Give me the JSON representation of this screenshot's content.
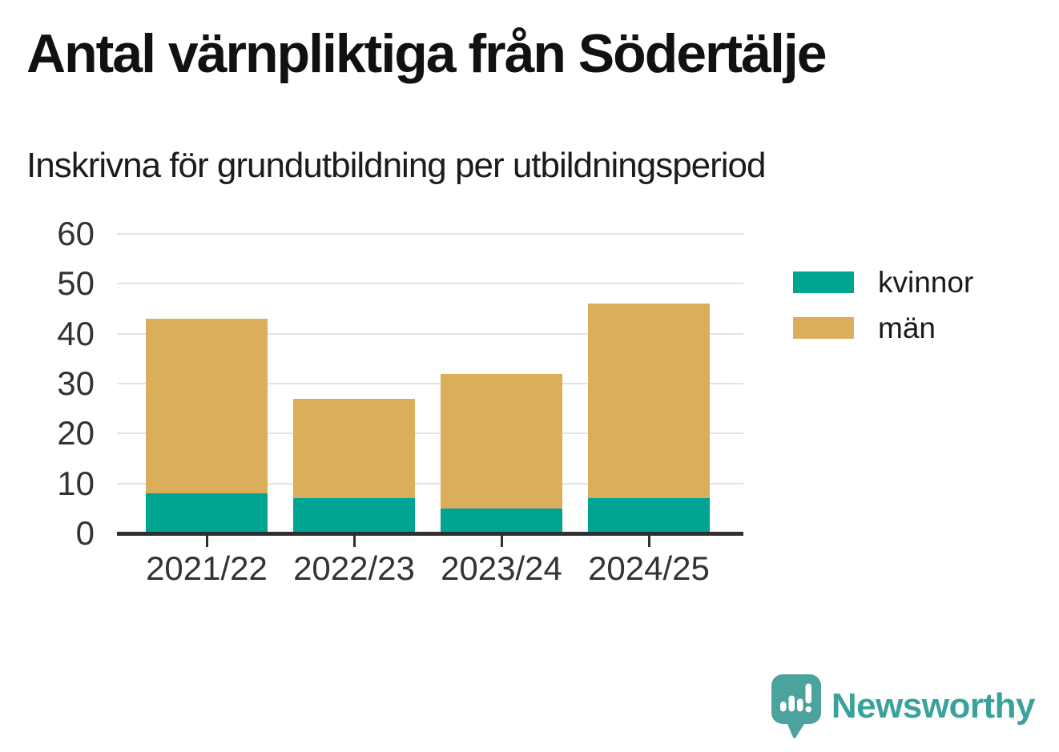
{
  "title": "Antal värnpliktiga från Södertälje",
  "subtitle": "Inskrivna för grundutbildning per utbildningsperiod",
  "footer": {
    "brand": "Newsworthy"
  },
  "colors": {
    "kvinnor": "#00a493",
    "man": "#dbae5b",
    "grid": "#e3e3e3",
    "axis": "#2f2f2f",
    "tick_label": "#333333",
    "title_text": "#111111",
    "logo_bubble": "#4aa39c",
    "wordmark": "#3aa29a"
  },
  "chart_data": {
    "type": "bar",
    "stacked": true,
    "title": "Antal värnpliktiga från Södertälje",
    "subtitle": "Inskrivna för grundutbildning per utbildningsperiod",
    "categories": [
      "2021/22",
      "2022/23",
      "2023/24",
      "2024/25"
    ],
    "series": [
      {
        "name": "kvinnor",
        "color": "#00a493",
        "values": [
          8,
          7,
          5,
          7
        ]
      },
      {
        "name": "män",
        "color": "#dbae5b",
        "values": [
          35,
          20,
          27,
          39
        ]
      }
    ],
    "totals": [
      43,
      27,
      32,
      46
    ],
    "xlabel": "",
    "ylabel": "",
    "ylim": [
      0,
      60
    ],
    "yticks": [
      0,
      10,
      20,
      30,
      40,
      50,
      60
    ],
    "grid": "horizontal",
    "legend_position": "right"
  }
}
